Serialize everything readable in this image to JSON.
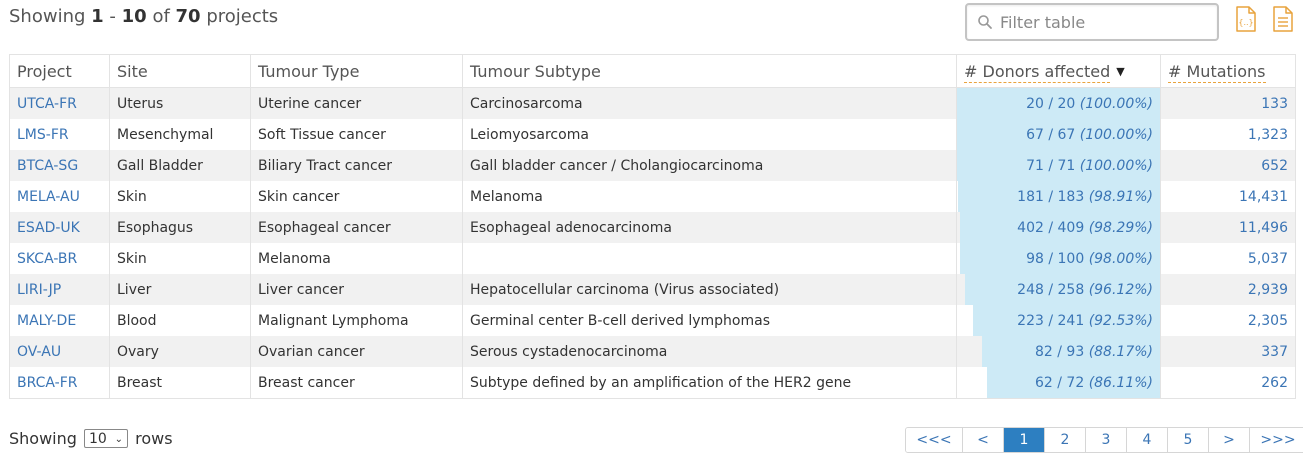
{
  "summary": {
    "prefix": "Showing",
    "start": "1",
    "sep": "-",
    "end": "10",
    "of": "of",
    "total": "70",
    "suffix": "projects"
  },
  "filter": {
    "placeholder": "Filter table"
  },
  "exports": {
    "json_icon": "json-export-icon",
    "tsv_icon": "tsv-export-icon",
    "color": "#e8a33d"
  },
  "table": {
    "columns": [
      "Project",
      "Site",
      "Tumour Type",
      "Tumour Subtype",
      "# Donors affected",
      "# Mutations"
    ],
    "sort_indicator": "▼",
    "rows": [
      {
        "project": "UTCA-FR",
        "site": "Uterus",
        "type": "Uterine cancer",
        "subtype": "Carcinosarcoma",
        "donors": "20 / 20",
        "pct": "(100.00%)",
        "fraction": 1.0,
        "mutations": "133"
      },
      {
        "project": "LMS-FR",
        "site": "Mesenchymal",
        "type": "Soft Tissue cancer",
        "subtype": "Leiomyosarcoma",
        "donors": "67 / 67",
        "pct": "(100.00%)",
        "fraction": 1.0,
        "mutations": "1,323"
      },
      {
        "project": "BTCA-SG",
        "site": "Gall Bladder",
        "type": "Biliary Tract cancer",
        "subtype": "Gall bladder cancer / Cholangiocarcinoma",
        "donors": "71 / 71",
        "pct": "(100.00%)",
        "fraction": 1.0,
        "mutations": "652"
      },
      {
        "project": "MELA-AU",
        "site": "Skin",
        "type": "Skin cancer",
        "subtype": "Melanoma",
        "donors": "181 / 183",
        "pct": "(98.91%)",
        "fraction": 0.9891,
        "mutations": "14,431"
      },
      {
        "project": "ESAD-UK",
        "site": "Esophagus",
        "type": "Esophageal cancer",
        "subtype": "Esophageal adenocarcinoma",
        "donors": "402 / 409",
        "pct": "(98.29%)",
        "fraction": 0.9829,
        "mutations": "11,496"
      },
      {
        "project": "SKCA-BR",
        "site": "Skin",
        "type": "Melanoma",
        "subtype": "",
        "donors": "98 / 100",
        "pct": "(98.00%)",
        "fraction": 0.98,
        "mutations": "5,037"
      },
      {
        "project": "LIRI-JP",
        "site": "Liver",
        "type": "Liver cancer",
        "subtype": "Hepatocellular carcinoma (Virus associated)",
        "donors": "248 / 258",
        "pct": "(96.12%)",
        "fraction": 0.9612,
        "mutations": "2,939"
      },
      {
        "project": "MALY-DE",
        "site": "Blood",
        "type": "Malignant Lymphoma",
        "subtype": "Germinal center B-cell derived lymphomas",
        "donors": "223 / 241",
        "pct": "(92.53%)",
        "fraction": 0.9253,
        "mutations": "2,305"
      },
      {
        "project": "OV-AU",
        "site": "Ovary",
        "type": "Ovarian cancer",
        "subtype": "Serous cystadenocarcinoma",
        "donors": "82 / 93",
        "pct": "(88.17%)",
        "fraction": 0.8817,
        "mutations": "337"
      },
      {
        "project": "BRCA-FR",
        "site": "Breast",
        "type": "Breast cancer",
        "subtype": "Subtype defined by an amplification of the HER2 gene",
        "donors": "62 / 72",
        "pct": "(86.11%)",
        "fraction": 0.8611,
        "mutations": "262"
      }
    ]
  },
  "rows_control": {
    "prefix": "Showing",
    "value": "10",
    "suffix": "rows"
  },
  "pagination": {
    "items": [
      {
        "label": "<<<",
        "name": "first-page-button",
        "active": false
      },
      {
        "label": "<",
        "name": "prev-page-button",
        "active": false
      },
      {
        "label": "1",
        "name": "page-1-button",
        "active": true
      },
      {
        "label": "2",
        "name": "page-2-button",
        "active": false
      },
      {
        "label": "3",
        "name": "page-3-button",
        "active": false
      },
      {
        "label": "4",
        "name": "page-4-button",
        "active": false
      },
      {
        "label": "5",
        "name": "page-5-button",
        "active": false
      },
      {
        "label": ">",
        "name": "next-page-button",
        "active": false
      },
      {
        "label": ">>>",
        "name": "last-page-button",
        "active": false
      }
    ]
  },
  "colors": {
    "link": "#3b75b5",
    "bar": "#cdeaf6",
    "active_page": "#2d7fc1",
    "row_stripe": "#f1f1f1"
  }
}
